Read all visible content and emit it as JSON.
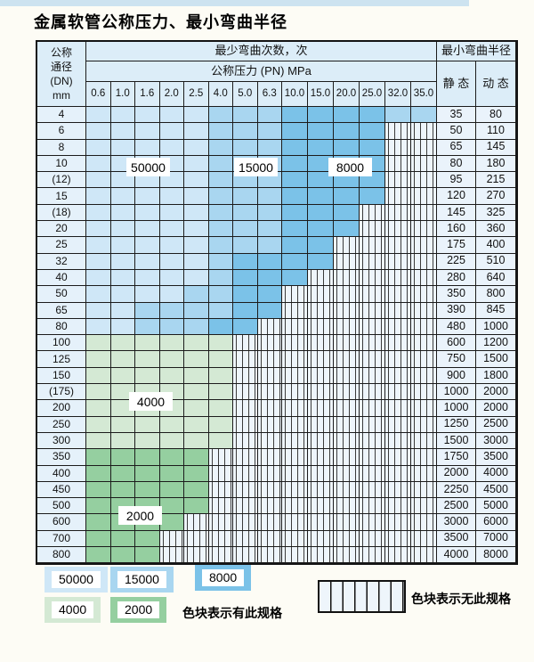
{
  "title": "金属软管公称压力、最小弯曲半径",
  "colors": {
    "c50000": "#cfe7f7",
    "c15000": "#a9d6f0",
    "c8000": "#7bc2e8",
    "c4000": "#d4e9d4",
    "c2000": "#95cfa0",
    "header_bg": "#dcedf8",
    "hatch_bg": "#eef5fb",
    "grid_line": "#1c1c1c"
  },
  "table": {
    "corner_lines": [
      "公称",
      "通径",
      "(DN)",
      "mm"
    ],
    "bend_header": "最少弯曲次数，次",
    "pressure_header": "公称压力 (PN) MPa",
    "radius_header": "最小弯曲半径",
    "static_label": "静 态",
    "dynamic_label": "动 态",
    "pressures": [
      "0.6",
      "1.0",
      "1.6",
      "2.0",
      "2.5",
      "4.0",
      "5.0",
      "6.3",
      "10.0",
      "15.0",
      "20.0",
      "25.0",
      "32.0",
      "35.0"
    ],
    "rows": [
      {
        "dn": "4",
        "static": "35",
        "dynamic": "80",
        "zones": [
          [
            5,
            "c50000"
          ],
          [
            3,
            "c15000"
          ],
          [
            4,
            "c8000"
          ],
          [
            2,
            "c15000"
          ]
        ]
      },
      {
        "dn": "6",
        "static": "50",
        "dynamic": "110",
        "zones": [
          [
            5,
            "c50000"
          ],
          [
            3,
            "c15000"
          ],
          [
            4,
            "c8000"
          ]
        ]
      },
      {
        "dn": "8",
        "static": "65",
        "dynamic": "145",
        "zones": [
          [
            5,
            "c50000"
          ],
          [
            3,
            "c15000"
          ],
          [
            4,
            "c8000"
          ]
        ]
      },
      {
        "dn": "10",
        "static": "80",
        "dynamic": "180",
        "zones": [
          [
            5,
            "c50000"
          ],
          [
            3,
            "c15000"
          ],
          [
            4,
            "c8000"
          ]
        ]
      },
      {
        "dn": "(12)",
        "static": "95",
        "dynamic": "215",
        "zones": [
          [
            5,
            "c50000"
          ],
          [
            3,
            "c15000"
          ],
          [
            4,
            "c8000"
          ]
        ]
      },
      {
        "dn": "15",
        "static": "120",
        "dynamic": "270",
        "zones": [
          [
            5,
            "c50000"
          ],
          [
            3,
            "c15000"
          ],
          [
            4,
            "c8000"
          ]
        ]
      },
      {
        "dn": "(18)",
        "static": "145",
        "dynamic": "325",
        "zones": [
          [
            5,
            "c50000"
          ],
          [
            3,
            "c15000"
          ],
          [
            3,
            "c8000"
          ]
        ]
      },
      {
        "dn": "20",
        "static": "160",
        "dynamic": "360",
        "zones": [
          [
            5,
            "c50000"
          ],
          [
            3,
            "c15000"
          ],
          [
            3,
            "c8000"
          ]
        ]
      },
      {
        "dn": "25",
        "static": "175",
        "dynamic": "400",
        "zones": [
          [
            5,
            "c50000"
          ],
          [
            3,
            "c15000"
          ],
          [
            2,
            "c8000"
          ]
        ]
      },
      {
        "dn": "32",
        "static": "225",
        "dynamic": "510",
        "zones": [
          [
            5,
            "c50000"
          ],
          [
            1,
            "c15000"
          ],
          [
            4,
            "c8000"
          ]
        ]
      },
      {
        "dn": "40",
        "static": "280",
        "dynamic": "640",
        "zones": [
          [
            5,
            "c50000"
          ],
          [
            1,
            "c15000"
          ],
          [
            3,
            "c8000"
          ]
        ]
      },
      {
        "dn": "50",
        "static": "350",
        "dynamic": "800",
        "zones": [
          [
            4,
            "c50000"
          ],
          [
            2,
            "c15000"
          ],
          [
            2,
            "c8000"
          ]
        ]
      },
      {
        "dn": "65",
        "static": "390",
        "dynamic": "845",
        "zones": [
          [
            2,
            "c50000"
          ],
          [
            4,
            "c15000"
          ],
          [
            2,
            "c8000"
          ]
        ]
      },
      {
        "dn": "80",
        "static": "480",
        "dynamic": "1000",
        "zones": [
          [
            2,
            "c50000"
          ],
          [
            3,
            "c15000"
          ],
          [
            2,
            "c8000"
          ]
        ]
      },
      {
        "dn": "100",
        "static": "600",
        "dynamic": "1200",
        "zones": [
          [
            6,
            "c4000"
          ]
        ]
      },
      {
        "dn": "125",
        "static": "750",
        "dynamic": "1500",
        "zones": [
          [
            6,
            "c4000"
          ]
        ]
      },
      {
        "dn": "150",
        "static": "900",
        "dynamic": "1800",
        "zones": [
          [
            6,
            "c4000"
          ]
        ]
      },
      {
        "dn": "(175)",
        "static": "1000",
        "dynamic": "2000",
        "zones": [
          [
            6,
            "c4000"
          ]
        ]
      },
      {
        "dn": "200",
        "static": "1000",
        "dynamic": "2000",
        "zones": [
          [
            6,
            "c4000"
          ]
        ]
      },
      {
        "dn": "250",
        "static": "1250",
        "dynamic": "2500",
        "zones": [
          [
            6,
            "c4000"
          ]
        ]
      },
      {
        "dn": "300",
        "static": "1500",
        "dynamic": "3000",
        "zones": [
          [
            6,
            "c4000"
          ]
        ]
      },
      {
        "dn": "350",
        "static": "1750",
        "dynamic": "3500",
        "zones": [
          [
            5,
            "c2000"
          ]
        ]
      },
      {
        "dn": "400",
        "static": "2000",
        "dynamic": "4000",
        "zones": [
          [
            5,
            "c2000"
          ]
        ]
      },
      {
        "dn": "450",
        "static": "2250",
        "dynamic": "4500",
        "zones": [
          [
            5,
            "c2000"
          ]
        ]
      },
      {
        "dn": "500",
        "static": "2500",
        "dynamic": "5000",
        "zones": [
          [
            5,
            "c2000"
          ]
        ]
      },
      {
        "dn": "600",
        "static": "3000",
        "dynamic": "6000",
        "zones": [
          [
            4,
            "c2000"
          ]
        ]
      },
      {
        "dn": "700",
        "static": "3500",
        "dynamic": "7000",
        "zones": [
          [
            3,
            "c2000"
          ]
        ]
      },
      {
        "dn": "800",
        "static": "4000",
        "dynamic": "8000",
        "zones": [
          [
            3,
            "c2000"
          ]
        ]
      }
    ]
  },
  "overlays": {
    "b50000": "50000",
    "b15000": "15000",
    "b8000": "8000",
    "g4000": "4000",
    "g2000": "2000"
  },
  "legend": {
    "items": [
      {
        "label": "50000",
        "color": "c50000"
      },
      {
        "label": "15000",
        "color": "c15000"
      },
      {
        "label": "8000",
        "color": "c8000"
      },
      {
        "label": "4000",
        "color": "c4000"
      },
      {
        "label": "2000",
        "color": "c2000"
      }
    ],
    "has_spec_text": "色块表示有此规格",
    "no_spec_text": "色块表示无此规格"
  }
}
